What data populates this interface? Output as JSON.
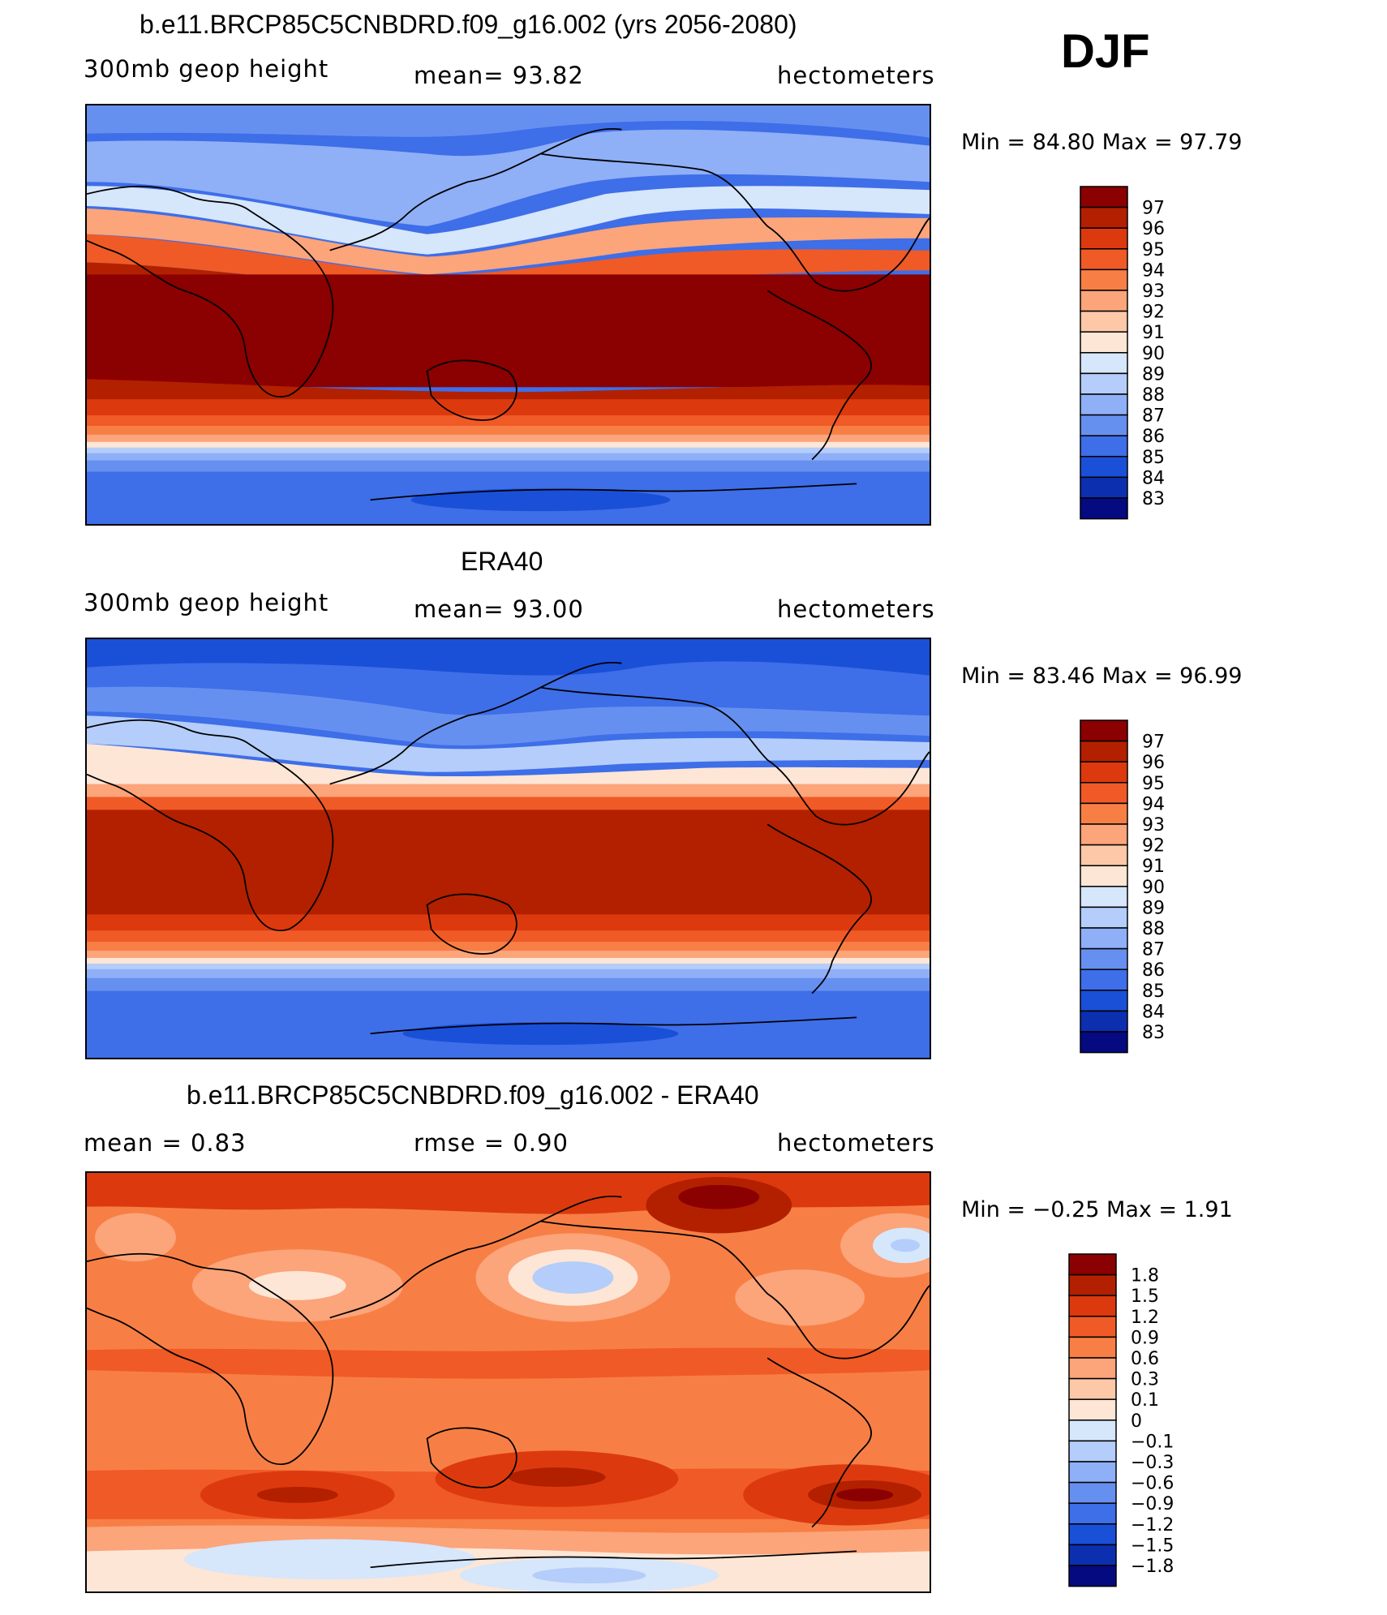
{
  "season": "DJF",
  "panels": [
    {
      "title": "b.e11.BRCP85C5CNBDRD.f09_g16.002 (yrs 2056-2080)",
      "left_label": "300mb  geop  height",
      "center_label": "mean=   93.82",
      "units": "hectometers",
      "minmax": "Min =   84.80  Max =   97.79",
      "type": "field"
    },
    {
      "title": "ERA40",
      "left_label": "300mb  geop  height",
      "center_label": "mean=   93.00",
      "units": "hectometers",
      "minmax": "Min =   83.46  Max =   96.99",
      "type": "field"
    },
    {
      "title": "b.e11.BRCP85C5CNBDRD.f09_g16.002 - ERA40",
      "left_label": "mean =    0.83",
      "center_label": "rmse =    0.90",
      "units": "hectometers",
      "minmax": "Min =   −0.25  Max =    1.91",
      "type": "diff"
    }
  ],
  "field_colorbar": {
    "labels": [
      "97",
      "96",
      "95",
      "94",
      "93",
      "92",
      "91",
      "90",
      "89",
      "88",
      "87",
      "86",
      "85",
      "84",
      "83"
    ],
    "colors": [
      "#8b0000",
      "#b22000",
      "#dc3a0e",
      "#f05a26",
      "#f77f45",
      "#fca47a",
      "#fdc8a8",
      "#fde6d6",
      "#d6e6fb",
      "#b4cdfa",
      "#8faff7",
      "#6690f0",
      "#3e6ee8",
      "#1a4fd8",
      "#0c2fb0",
      "#050a80"
    ]
  },
  "diff_colorbar": {
    "labels": [
      "1.8",
      "1.5",
      "1.2",
      "0.9",
      "0.6",
      "0.3",
      "0.1",
      "0",
      "−0.1",
      "−0.3",
      "−0.6",
      "−0.9",
      "−1.2",
      "−1.5",
      "−1.8"
    ],
    "colors": [
      "#8b0000",
      "#b22000",
      "#dc3a0e",
      "#f05a26",
      "#f77f45",
      "#fca47a",
      "#fdc8a8",
      "#fde6d6",
      "#d6e6fb",
      "#b4cdfa",
      "#8faff7",
      "#6690f0",
      "#3e6ee8",
      "#1a4fd8",
      "#0c2fb0",
      "#050a80"
    ]
  }
}
